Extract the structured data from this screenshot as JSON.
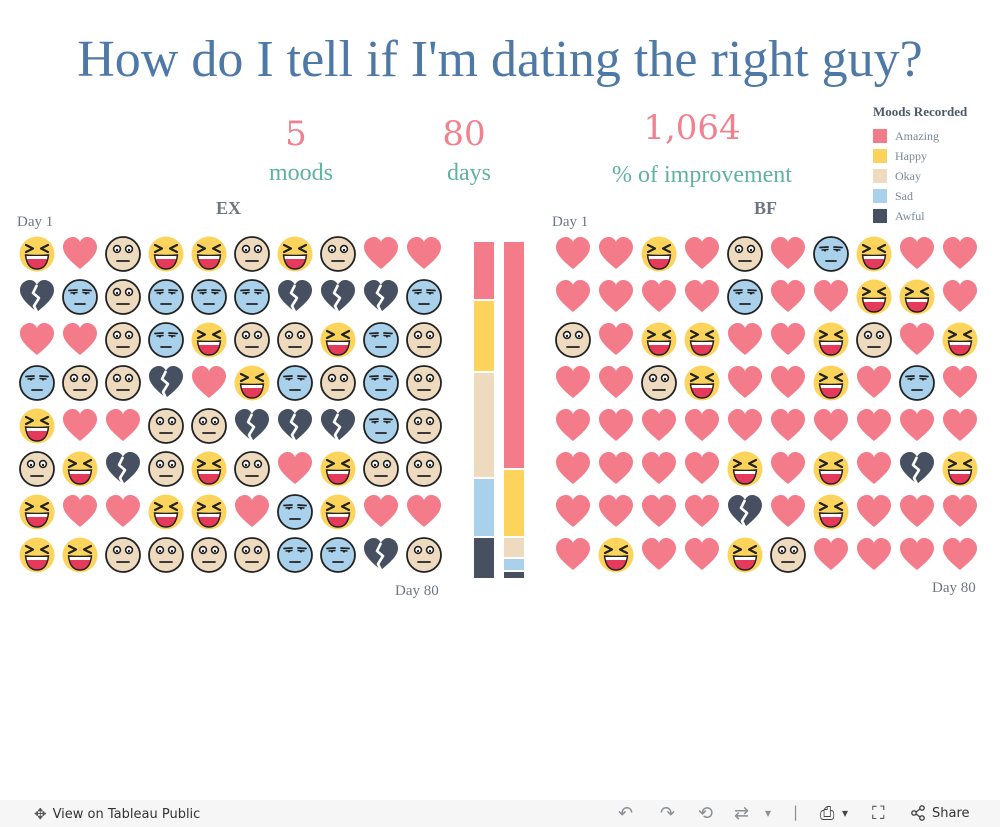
{
  "title": "How do I tell if I'm dating the right guy?",
  "kpis": [
    {
      "value": "5",
      "label": "moods"
    },
    {
      "value": "80",
      "label": "days"
    },
    {
      "value": "1,064",
      "label": "% of improvement"
    }
  ],
  "legend": {
    "title": "Moods Recorded",
    "items": [
      {
        "label": "Amazing",
        "color": "#f47b89"
      },
      {
        "label": "Happy",
        "color": "#fcd45c"
      },
      {
        "label": "Okay",
        "color": "#eedbbf"
      },
      {
        "label": "Sad",
        "color": "#a9d1ec"
      },
      {
        "label": "Awful",
        "color": "#465060"
      }
    ]
  },
  "panels": {
    "ex": {
      "title": "EX",
      "start_label": "Day 1",
      "end_label": "Day 80"
    },
    "bf": {
      "title": "BF",
      "start_label": "Day 1",
      "end_label": "Day 80"
    }
  },
  "chart_data": {
    "type": "table",
    "mood_order": [
      "Amazing",
      "Happy",
      "Okay",
      "Sad",
      "Awful"
    ],
    "days": 80,
    "ex_moods": [
      "Happy",
      "Amazing",
      "Okay",
      "Happy",
      "Happy",
      "Okay",
      "Happy",
      "Okay",
      "Amazing",
      "Amazing",
      "Awful",
      "Sad",
      "Okay",
      "Sad",
      "Sad",
      "Sad",
      "Awful",
      "Awful",
      "Awful",
      "Sad",
      "Amazing",
      "Amazing",
      "Okay",
      "Sad",
      "Happy",
      "Okay",
      "Okay",
      "Happy",
      "Sad",
      "Okay",
      "Sad",
      "Okay",
      "Okay",
      "Awful",
      "Amazing",
      "Happy",
      "Sad",
      "Okay",
      "Sad",
      "Okay",
      "Happy",
      "Amazing",
      "Amazing",
      "Okay",
      "Okay",
      "Awful",
      "Awful",
      "Awful",
      "Sad",
      "Okay",
      "Okay",
      "Happy",
      "Awful",
      "Okay",
      "Happy",
      "Okay",
      "Amazing",
      "Happy",
      "Okay",
      "Okay",
      "Happy",
      "Amazing",
      "Amazing",
      "Happy",
      "Happy",
      "Amazing",
      "Sad",
      "Happy",
      "Amazing",
      "Amazing",
      "Happy",
      "Happy",
      "Okay",
      "Okay",
      "Okay",
      "Okay",
      "Sad",
      "Sad",
      "Awful",
      "Okay"
    ],
    "bf_moods": [
      "Amazing",
      "Amazing",
      "Happy",
      "Amazing",
      "Okay",
      "Amazing",
      "Sad",
      "Happy",
      "Amazing",
      "Amazing",
      "Amazing",
      "Amazing",
      "Amazing",
      "Amazing",
      "Sad",
      "Amazing",
      "Amazing",
      "Happy",
      "Happy",
      "Amazing",
      "Okay",
      "Amazing",
      "Happy",
      "Happy",
      "Amazing",
      "Amazing",
      "Happy",
      "Okay",
      "Amazing",
      "Happy",
      "Amazing",
      "Amazing",
      "Okay",
      "Happy",
      "Amazing",
      "Amazing",
      "Happy",
      "Amazing",
      "Sad",
      "Amazing",
      "Amazing",
      "Amazing",
      "Amazing",
      "Amazing",
      "Amazing",
      "Amazing",
      "Amazing",
      "Amazing",
      "Amazing",
      "Amazing",
      "Amazing",
      "Amazing",
      "Amazing",
      "Amazing",
      "Happy",
      "Amazing",
      "Happy",
      "Amazing",
      "Awful",
      "Happy",
      "Amazing",
      "Amazing",
      "Amazing",
      "Amazing",
      "Awful",
      "Amazing",
      "Happy",
      "Amazing",
      "Amazing",
      "Amazing",
      "Amazing",
      "Happy",
      "Amazing",
      "Amazing",
      "Happy",
      "Okay",
      "Amazing",
      "Amazing",
      "Amazing",
      "Amazing"
    ]
  },
  "footer": {
    "view_label": "View on Tableau Public",
    "share_label": "Share"
  }
}
